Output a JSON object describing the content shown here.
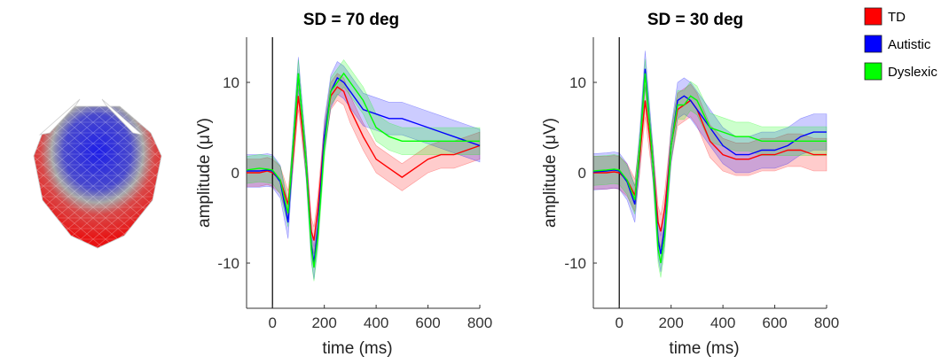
{
  "legend": {
    "placement": "top-right",
    "entries": [
      {
        "label": "TD",
        "color": "#ff0000"
      },
      {
        "label": "Autistic",
        "color": "#0000ff"
      },
      {
        "label": "Dyslexic",
        "color": "#00ff00"
      }
    ]
  },
  "topomap": {
    "description_colors": {
      "positive": "#2a2ae0",
      "neutral": "#b0b0b0",
      "negative": "#e01818"
    }
  },
  "chart_data": [
    {
      "type": "line",
      "title": "SD = 70 deg",
      "xlabel": "time (ms)",
      "ylabel": "amplitude (μV)",
      "xlim": [
        -100,
        800
      ],
      "ylim": [
        -15,
        15
      ],
      "xticks": [
        0,
        200,
        400,
        600,
        800
      ],
      "yticks": [
        -10,
        0,
        10
      ],
      "x": [
        -100,
        -50,
        -20,
        0,
        30,
        60,
        80,
        100,
        130,
        150,
        160,
        175,
        200,
        225,
        250,
        275,
        300,
        350,
        400,
        450,
        500,
        550,
        600,
        650,
        700,
        750,
        800
      ],
      "series": [
        {
          "name": "TD",
          "color": "#ff0000",
          "values": [
            0,
            0,
            0.2,
            0,
            -0.8,
            -3.5,
            2,
            8.5,
            1,
            -6.5,
            -7.5,
            -4,
            4,
            8.5,
            9.5,
            9,
            7,
            4,
            1.5,
            0.5,
            -0.5,
            0.5,
            1.5,
            2,
            2,
            2.5,
            3
          ],
          "band": 1.5
        },
        {
          "name": "Autistic",
          "color": "#0000ff",
          "values": [
            0.2,
            0.2,
            0.3,
            0.2,
            -1,
            -5.5,
            3,
            11,
            1,
            -8,
            -10,
            -6,
            4,
            9,
            10.5,
            10,
            9,
            7,
            6.5,
            6,
            6,
            5.5,
            5,
            4.5,
            4,
            3.5,
            3
          ],
          "band": 1.8
        },
        {
          "name": "Dyslexic",
          "color": "#00ff00",
          "values": [
            0.3,
            0.5,
            0.4,
            0.3,
            -0.8,
            -4.5,
            3,
            11,
            1,
            -8.5,
            -10.5,
            -7,
            3,
            9,
            10,
            11,
            10,
            8,
            5,
            4,
            3.5,
            3.5,
            3.5,
            3.5,
            3.5,
            3.5,
            3.5
          ],
          "band": 1.5
        }
      ]
    },
    {
      "type": "line",
      "title": "SD = 30 deg",
      "xlabel": "time (ms)",
      "ylabel": "amplitude (μV)",
      "xlim": [
        -100,
        800
      ],
      "ylim": [
        -15,
        15
      ],
      "xticks": [
        0,
        200,
        400,
        600,
        800
      ],
      "yticks": [
        -10,
        0,
        10
      ],
      "x": [
        -100,
        -50,
        -20,
        0,
        30,
        60,
        80,
        100,
        130,
        150,
        160,
        175,
        200,
        225,
        250,
        275,
        300,
        350,
        400,
        450,
        500,
        550,
        600,
        650,
        700,
        750,
        800
      ],
      "series": [
        {
          "name": "TD",
          "color": "#ff0000",
          "values": [
            0,
            0,
            0.1,
            0,
            -0.8,
            -2.5,
            2,
            8,
            1,
            -5.5,
            -6.5,
            -4,
            3,
            7,
            7.5,
            8,
            7,
            3.5,
            2,
            1.5,
            1.5,
            2,
            2,
            2.5,
            2.5,
            2,
            2
          ],
          "band": 1.8
        },
        {
          "name": "Autistic",
          "color": "#0000ff",
          "values": [
            0.1,
            0.2,
            0.3,
            0.2,
            -1,
            -3.5,
            3,
            11.5,
            1,
            -7.5,
            -9,
            -6,
            3,
            8,
            8.5,
            8,
            7,
            5,
            3,
            2,
            2,
            2.5,
            2.5,
            3,
            4,
            4.5,
            4.5
          ],
          "band": 2
        },
        {
          "name": "Dyslexic",
          "color": "#00ff00",
          "values": [
            0.2,
            0.3,
            0.4,
            0.3,
            -0.8,
            -3,
            3,
            11,
            1,
            -8.5,
            -10,
            -7,
            3,
            7.5,
            7.5,
            8.5,
            8,
            5,
            4.5,
            4,
            4,
            3.5,
            3.5,
            3.5,
            3.5,
            3.5,
            3.5
          ],
          "band": 1.6
        }
      ]
    }
  ]
}
